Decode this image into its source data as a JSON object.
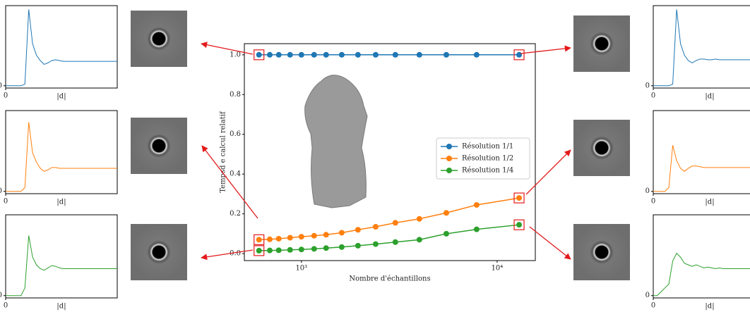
{
  "chart_data": [
    {
      "type": "line",
      "ylabel": "Tempsd e calcul relatif",
      "xlabel": "Nombre d'échantillons",
      "xscale": "log",
      "x": [
        607,
        689,
        766,
        875,
        1000,
        1161,
        1337,
        1607,
        1945,
        2395,
        3020,
        4006,
        5500,
        7855,
        12950
      ],
      "xlim": [
        511,
        15670
      ],
      "xticks": [
        {
          "value": 1000,
          "label": "10³"
        },
        {
          "value": 10000,
          "label": "10⁴"
        }
      ],
      "ylim": [
        -0.035,
        1.056
      ],
      "yticks": [
        {
          "value": 0,
          "label": "0.0"
        },
        0.2,
        0.4,
        0.6,
        0.8,
        {
          "value": 1,
          "label": "1.0"
        }
      ],
      "legend": "center right",
      "series": [
        {
          "name": "Résolution 1/1",
          "color": "#1f77b4",
          "values": [
            1,
            1,
            1,
            1,
            1,
            1,
            1,
            1,
            1,
            1,
            1,
            1,
            1,
            1,
            1
          ]
        },
        {
          "name": "Résolution 1/2",
          "color": "#ff7f0e",
          "values": [
            0.07,
            0.072,
            0.075,
            0.08,
            0.085,
            0.09,
            0.095,
            0.105,
            0.12,
            0.135,
            0.155,
            0.175,
            0.205,
            0.245,
            0.28
          ]
        },
        {
          "name": "Résolution 1/4",
          "color": "#2ca02c",
          "values": [
            0.015,
            0.016,
            0.017,
            0.019,
            0.021,
            0.024,
            0.028,
            0.033,
            0.04,
            0.048,
            0.058,
            0.07,
            0.1,
            0.122,
            0.145
          ]
        }
      ]
    },
    {
      "type": "line",
      "xlabel": "|d|",
      "xlim": [
        0,
        29
      ],
      "xticks": [
        0
      ],
      "ylim": [
        -0.03,
        1.05
      ],
      "yticks": [
        0
      ],
      "color": "#1f77b4",
      "values": [
        0,
        0,
        0,
        0,
        0,
        0.02,
        1.0,
        0.55,
        0.4,
        0.33,
        0.28,
        0.3,
        0.33,
        0.34,
        0.33,
        0.32,
        0.32,
        0.32,
        0.32,
        0.32,
        0.32,
        0.32,
        0.32,
        0.32,
        0.32,
        0.32,
        0.32,
        0.32,
        0.32,
        0.32
      ]
    },
    {
      "type": "line",
      "xlabel": "|d|",
      "xlim": [
        0,
        29
      ],
      "xticks": [
        0
      ],
      "ylim": [
        -0.03,
        1.05
      ],
      "yticks": [
        0
      ],
      "color": "#ff7f0e",
      "values": [
        0,
        0,
        0,
        0,
        0,
        0.05,
        0.9,
        0.5,
        0.38,
        0.3,
        0.26,
        0.28,
        0.31,
        0.31,
        0.3,
        0.3,
        0.3,
        0.3,
        0.3,
        0.3,
        0.3,
        0.3,
        0.3,
        0.3,
        0.3,
        0.3,
        0.3,
        0.3,
        0.3,
        0.3
      ]
    },
    {
      "type": "line",
      "xlabel": "|d|",
      "xlim": [
        0,
        29
      ],
      "xticks": [
        0
      ],
      "ylim": [
        -0.03,
        1.05
      ],
      "yticks": [
        0
      ],
      "color": "#2ca02c",
      "values": [
        0,
        0,
        0,
        0,
        0,
        0.1,
        0.78,
        0.5,
        0.4,
        0.35,
        0.33,
        0.36,
        0.39,
        0.38,
        0.36,
        0.35,
        0.35,
        0.35,
        0.35,
        0.35,
        0.35,
        0.35,
        0.35,
        0.35,
        0.35,
        0.35,
        0.35,
        0.35,
        0.35,
        0.35
      ]
    },
    {
      "type": "line",
      "xlabel": "|d|",
      "xlim": [
        0,
        29
      ],
      "xticks": [
        0
      ],
      "ylim": [
        -0.03,
        1.05
      ],
      "yticks": [
        0
      ],
      "color": "#1f77b4",
      "values": [
        0,
        0,
        0,
        0,
        0,
        0.02,
        1.0,
        0.55,
        0.4,
        0.33,
        0.3,
        0.33,
        0.35,
        0.35,
        0.34,
        0.34,
        0.35,
        0.34,
        0.34,
        0.34,
        0.34,
        0.34,
        0.34,
        0.34,
        0.34,
        0.34,
        0.34,
        0.34,
        0.34,
        0.34
      ]
    },
    {
      "type": "line",
      "xlabel": "|d|",
      "xlim": [
        0,
        29
      ],
      "xticks": [
        0
      ],
      "ylim": [
        -0.03,
        1.05
      ],
      "yticks": [
        0
      ],
      "color": "#ff7f0e",
      "values": [
        0,
        0,
        0,
        0,
        0.05,
        0.6,
        0.4,
        0.3,
        0.26,
        0.3,
        0.33,
        0.33,
        0.32,
        0.31,
        0.31,
        0.31,
        0.31,
        0.31,
        0.31,
        0.31,
        0.31,
        0.31,
        0.31,
        0.31,
        0.31,
        0.31,
        0.31,
        0.31,
        0.31,
        0.31
      ]
    },
    {
      "type": "line",
      "xlabel": "|d|",
      "xlim": [
        0,
        29
      ],
      "xticks": [
        0
      ],
      "ylim": [
        -0.03,
        1.05
      ],
      "yticks": [
        0
      ],
      "color": "#2ca02c",
      "values": [
        0,
        0,
        0.05,
        0.1,
        0.15,
        0.45,
        0.55,
        0.5,
        0.42,
        0.4,
        0.38,
        0.4,
        0.38,
        0.36,
        0.37,
        0.36,
        0.35,
        0.36,
        0.35,
        0.35,
        0.35,
        0.35,
        0.35,
        0.35,
        0.35,
        0.35,
        0.35,
        0.35,
        0.35,
        0.35
      ]
    }
  ]
}
